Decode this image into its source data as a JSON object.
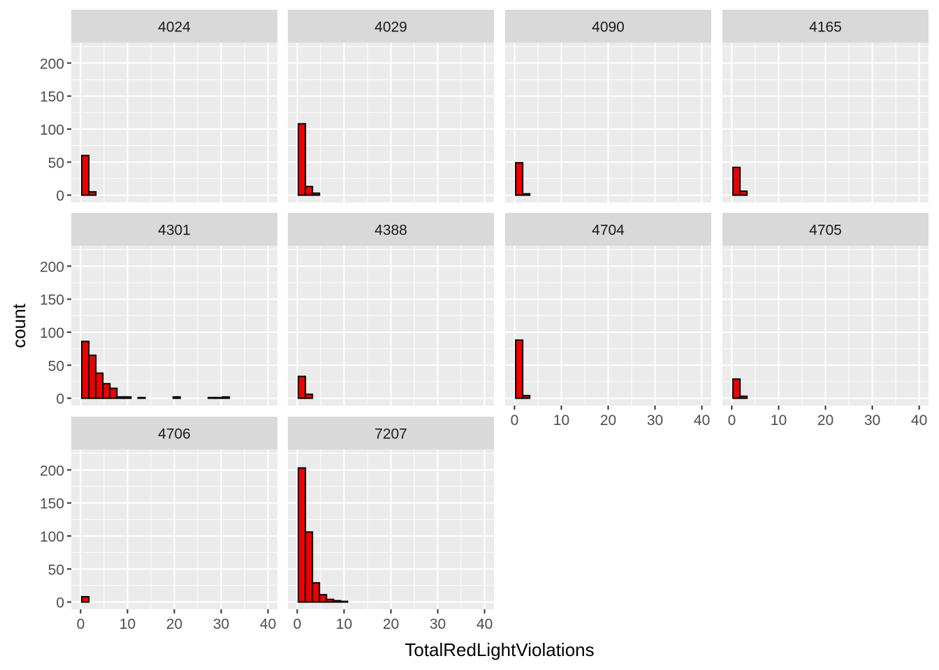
{
  "chart_data": {
    "type": "histogram-facets",
    "xlabel": "TotalRedLightViolations",
    "ylabel": "count",
    "xlim": [
      -2,
      42
    ],
    "ylim": [
      -11,
      231
    ],
    "x_ticks": [
      0,
      10,
      20,
      30,
      40
    ],
    "y_ticks": [
      0,
      50,
      100,
      150,
      200
    ],
    "bin_width": 1.5,
    "grid": true,
    "colors": {
      "bar_fill": "#EE0000",
      "bar_outline": "#000000",
      "panel_bg": "#EBEBEB",
      "strip_bg": "#D9D9D9",
      "grid": "#FFFFFF"
    },
    "facets": [
      {
        "label": "4024",
        "bins": [
          {
            "x": 1.0,
            "count": 60
          },
          {
            "x": 2.5,
            "count": 5
          }
        ]
      },
      {
        "label": "4029",
        "bins": [
          {
            "x": 1.0,
            "count": 108
          },
          {
            "x": 2.5,
            "count": 13
          },
          {
            "x": 4.0,
            "count": 3
          }
        ]
      },
      {
        "label": "4090",
        "bins": [
          {
            "x": 1.0,
            "count": 49
          },
          {
            "x": 2.5,
            "count": 2
          }
        ]
      },
      {
        "label": "4165",
        "bins": [
          {
            "x": 1.0,
            "count": 42
          },
          {
            "x": 2.5,
            "count": 6
          }
        ]
      },
      {
        "label": "4301",
        "bins": [
          {
            "x": 1.0,
            "count": 86
          },
          {
            "x": 2.5,
            "count": 65
          },
          {
            "x": 4.0,
            "count": 38
          },
          {
            "x": 5.5,
            "count": 22
          },
          {
            "x": 7.0,
            "count": 15
          },
          {
            "x": 8.5,
            "count": 2
          },
          {
            "x": 10.0,
            "count": 2
          },
          {
            "x": 13.0,
            "count": 1
          },
          {
            "x": 20.5,
            "count": 2
          },
          {
            "x": 28.0,
            "count": 1
          },
          {
            "x": 29.5,
            "count": 1
          },
          {
            "x": 31.0,
            "count": 2
          }
        ]
      },
      {
        "label": "4388",
        "bins": [
          {
            "x": 1.0,
            "count": 33
          },
          {
            "x": 2.5,
            "count": 6
          }
        ]
      },
      {
        "label": "4704",
        "bins": [
          {
            "x": 1.0,
            "count": 88
          },
          {
            "x": 2.5,
            "count": 4
          }
        ]
      },
      {
        "label": "4705",
        "bins": [
          {
            "x": 1.0,
            "count": 29
          },
          {
            "x": 2.5,
            "count": 3
          }
        ]
      },
      {
        "label": "4706",
        "bins": [
          {
            "x": 1.0,
            "count": 8
          }
        ]
      },
      {
        "label": "7207",
        "bins": [
          {
            "x": 1.0,
            "count": 203
          },
          {
            "x": 2.5,
            "count": 106
          },
          {
            "x": 4.0,
            "count": 29
          },
          {
            "x": 5.5,
            "count": 11
          },
          {
            "x": 7.0,
            "count": 4
          },
          {
            "x": 8.5,
            "count": 2
          },
          {
            "x": 10.0,
            "count": 1
          }
        ]
      }
    ]
  }
}
